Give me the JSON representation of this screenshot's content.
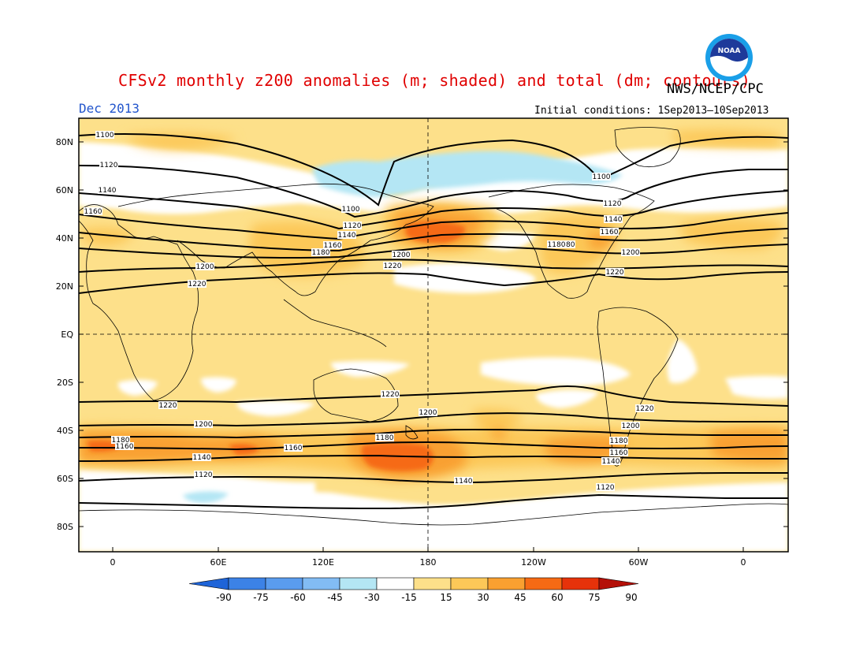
{
  "title": "CFSv2 monthly z200 anomalies (m; shaded) and total (dm; contours)",
  "agency": "NWS/NCEP/CPC",
  "logo_text": "NOAA",
  "month": "Dec 2013",
  "initial_conditions": "Initial conditions: 1Sep2013–10Sep2013",
  "lat_labels": [
    "80N",
    "60N",
    "40N",
    "20N",
    "EQ",
    "20S",
    "40S",
    "60S",
    "80S"
  ],
  "lon_labels": [
    "0",
    "60E",
    "120E",
    "180",
    "120W",
    "60W",
    "0"
  ],
  "colorbar": {
    "levels": [
      "-90",
      "-75",
      "-60",
      "-45",
      "-30",
      "-15",
      "15",
      "30",
      "45",
      "60",
      "75",
      "90"
    ],
    "colors": [
      "#1e64d8",
      "#3c82e6",
      "#5a9cee",
      "#82bcf4",
      "#b4e6f4",
      "#ffffff",
      "#fde08a",
      "#fcc858",
      "#f9a030",
      "#f66a14",
      "#e6320a",
      "#b41008"
    ]
  },
  "contour_labels": [
    "1100",
    "1120",
    "1140",
    "1160",
    "1100",
    "1120",
    "1140",
    "1160",
    "1180",
    "1200",
    "1220",
    "1200",
    "1220",
    "1180",
    "1100",
    "1120",
    "1140",
    "1160",
    "1180",
    "1200",
    "1220",
    "1220",
    "1200",
    "1180",
    "1160",
    "1140",
    "1120",
    "1220",
    "1200",
    "1180",
    "1160",
    "1140",
    "1120",
    "1180",
    "1160",
    "1140",
    "1120",
    "1200",
    "1220"
  ]
}
